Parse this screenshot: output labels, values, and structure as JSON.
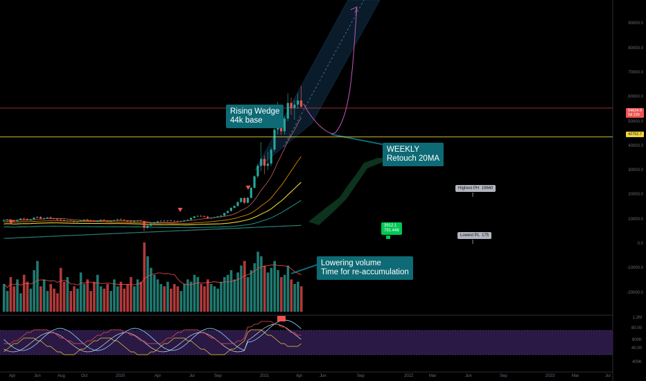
{
  "chart_data": [
    {
      "type": "candlestick",
      "title": "",
      "yaxis_ticks": [
        "100000.0",
        "90000.0",
        "80000.0",
        "70000.0",
        "60000.0",
        "50000.0",
        "40000.0",
        "30000.0",
        "20000.0",
        "10000.0",
        "0.0",
        "-10000.0",
        "-20000.0"
      ],
      "yaxis_scale": "linear",
      "ylim": [
        -24000,
        100000
      ],
      "price_now": 55800,
      "price_now_label": "54634.9",
      "price_now_sub": "5d 22h",
      "support_level": 44000,
      "support_label": "42752.7",
      "ohlc": [
        [
          9800,
          10400,
          9100,
          9900
        ],
        [
          9900,
          10500,
          9400,
          10200
        ],
        [
          10200,
          10600,
          9700,
          9800
        ],
        [
          9800,
          10200,
          9200,
          9600
        ],
        [
          9600,
          10300,
          9300,
          10100
        ],
        [
          10100,
          10800,
          9900,
          10600
        ],
        [
          10600,
          11000,
          10200,
          10400
        ],
        [
          10400,
          10700,
          9800,
          9900
        ],
        [
          9900,
          10500,
          9600,
          10300
        ],
        [
          10300,
          11200,
          10100,
          11000
        ],
        [
          11000,
          11600,
          10700,
          11300
        ],
        [
          11300,
          11500,
          10400,
          10600
        ],
        [
          10600,
          11000,
          10100,
          10800
        ],
        [
          10800,
          11300,
          10500,
          11100
        ],
        [
          11100,
          11400,
          10600,
          10700
        ],
        [
          10700,
          11000,
          10200,
          10500
        ],
        [
          10500,
          10900,
          10000,
          10200
        ],
        [
          10200,
          10600,
          9800,
          10000
        ],
        [
          10000,
          10300,
          9500,
          9700
        ],
        [
          9700,
          10100,
          9300,
          9800
        ],
        [
          9800,
          10200,
          9400,
          9500
        ],
        [
          9500,
          9900,
          9000,
          9300
        ],
        [
          9300,
          9700,
          8900,
          9600
        ],
        [
          9600,
          10100,
          9400,
          9900
        ],
        [
          9900,
          10400,
          9600,
          10200
        ],
        [
          10200,
          10600,
          9800,
          9900
        ],
        [
          9900,
          10300,
          9500,
          9700
        ],
        [
          9700,
          10000,
          9200,
          9400
        ],
        [
          9400,
          9900,
          9100,
          9800
        ],
        [
          9800,
          10300,
          9600,
          10100
        ],
        [
          10100,
          10400,
          9700,
          9800
        ],
        [
          9800,
          10100,
          9300,
          9500
        ],
        [
          9500,
          9900,
          9100,
          9700
        ],
        [
          9700,
          10200,
          9500,
          10000
        ],
        [
          10000,
          10500,
          9800,
          10300
        ],
        [
          10300,
          10700,
          10000,
          10100
        ],
        [
          10100,
          10400,
          9600,
          9700
        ],
        [
          9700,
          10000,
          9300,
          9500
        ],
        [
          9500,
          9800,
          9100,
          9300
        ],
        [
          9300,
          9700,
          9000,
          9600
        ],
        [
          9600,
          10000,
          9400,
          9800
        ],
        [
          9800,
          10200,
          9500,
          9600
        ],
        [
          9600,
          9800,
          5500,
          6800
        ],
        [
          6800,
          8000,
          6400,
          7700
        ],
        [
          7700,
          8700,
          7400,
          8500
        ],
        [
          8500,
          9300,
          8300,
          9100
        ],
        [
          9100,
          9700,
          8800,
          9500
        ],
        [
          9500,
          10000,
          9200,
          9700
        ],
        [
          9700,
          10100,
          9300,
          9600
        ],
        [
          9600,
          10000,
          9300,
          9800
        ],
        [
          9800,
          10200,
          9500,
          9700
        ],
        [
          9700,
          10000,
          9300,
          9500
        ],
        [
          9500,
          9900,
          9200,
          9400
        ],
        [
          9400,
          9800,
          9100,
          9600
        ],
        [
          9600,
          10000,
          9400,
          9900
        ],
        [
          9900,
          10300,
          9700,
          10100
        ],
        [
          10100,
          11000,
          10000,
          10900
        ],
        [
          10900,
          11700,
          10700,
          11500
        ],
        [
          11500,
          12000,
          11200,
          11700
        ],
        [
          11700,
          12100,
          11300,
          11600
        ],
        [
          11600,
          12000,
          11100,
          11400
        ],
        [
          11400,
          11800,
          10600,
          10800
        ],
        [
          10800,
          11200,
          10400,
          10900
        ],
        [
          10900,
          11400,
          10700,
          11200
        ],
        [
          11200,
          11700,
          11000,
          11500
        ],
        [
          11500,
          12000,
          11300,
          11800
        ],
        [
          11800,
          13000,
          11700,
          12900
        ],
        [
          12900,
          13900,
          12800,
          13700
        ],
        [
          13700,
          15200,
          13500,
          15000
        ],
        [
          15000,
          16000,
          14800,
          15800
        ],
        [
          15800,
          17600,
          15500,
          17400
        ],
        [
          17400,
          19300,
          17100,
          19000
        ],
        [
          19000,
          19400,
          16500,
          17100
        ],
        [
          17100,
          19500,
          16800,
          19100
        ],
        [
          19100,
          23500,
          18900,
          23200
        ],
        [
          23200,
          28300,
          22800,
          27900
        ],
        [
          27900,
          33000,
          27200,
          32200
        ],
        [
          32200,
          41900,
          30000,
          35000
        ],
        [
          35000,
          36500,
          28800,
          32200
        ],
        [
          32200,
          38000,
          30500,
          33100
        ],
        [
          33100,
          39700,
          32100,
          38800
        ],
        [
          38800,
          48000,
          37800,
          47000
        ],
        [
          47000,
          58300,
          45000,
          48300
        ],
        [
          48300,
          51500,
          44900,
          46300
        ],
        [
          46300,
          52600,
          45000,
          51500
        ],
        [
          51500,
          61800,
          50400,
          57900
        ],
        [
          57900,
          60100,
          53000,
          55800
        ],
        [
          55800,
          59000,
          51000,
          57200
        ],
        [
          57200,
          61700,
          55500,
          58900
        ],
        [
          58900,
          64900,
          56000,
          56400
        ]
      ],
      "volume": [
        12,
        9,
        15,
        11,
        14,
        8,
        16,
        13,
        10,
        18,
        22,
        11,
        14,
        9,
        12,
        10,
        8,
        19,
        13,
        15,
        9,
        11,
        10,
        17,
        12,
        14,
        9,
        13,
        16,
        11,
        10,
        12,
        9,
        14,
        11,
        13,
        10,
        12,
        15,
        11,
        14,
        13,
        30,
        24,
        19,
        16,
        14,
        12,
        11,
        13,
        10,
        12,
        11,
        9,
        12,
        14,
        13,
        16,
        15,
        12,
        11,
        14,
        12,
        11,
        10,
        13,
        15,
        16,
        18,
        14,
        17,
        20,
        22,
        15,
        18,
        21,
        26,
        24,
        20,
        17,
        19,
        22,
        18,
        15,
        16,
        20,
        14,
        12,
        13,
        11
      ]
    }
  ],
  "annotations": {
    "rising_wedge": "Rising Wedge\n44k base",
    "weekly": "WEEKLY\nRetouch 20MA",
    "volume": "Lowering volume\nTime for re-accumulation",
    "highest": "Highest PH  19660",
    "lowest": "Lowest PL  175",
    "mark_a": "3912.1\n791.448"
  },
  "x_labels": [
    "Apr",
    "Jun",
    "Aug",
    "Oct",
    "2020",
    "Apr",
    "Jul",
    "Sep",
    "2021",
    "Apr",
    "Jun",
    "Sep",
    "2022",
    "Mar",
    "Jun",
    "Sep",
    "2023",
    "Mar",
    "Jul"
  ],
  "osc_ticks": [
    "1.2M",
    "80.00",
    "800K",
    "40.00",
    "400K"
  ],
  "colors": {
    "up": "#26a69a",
    "down": "#ef5350",
    "accent": "#0e6a74",
    "support": "#f0d43a",
    "band": "#2f1b4d"
  }
}
